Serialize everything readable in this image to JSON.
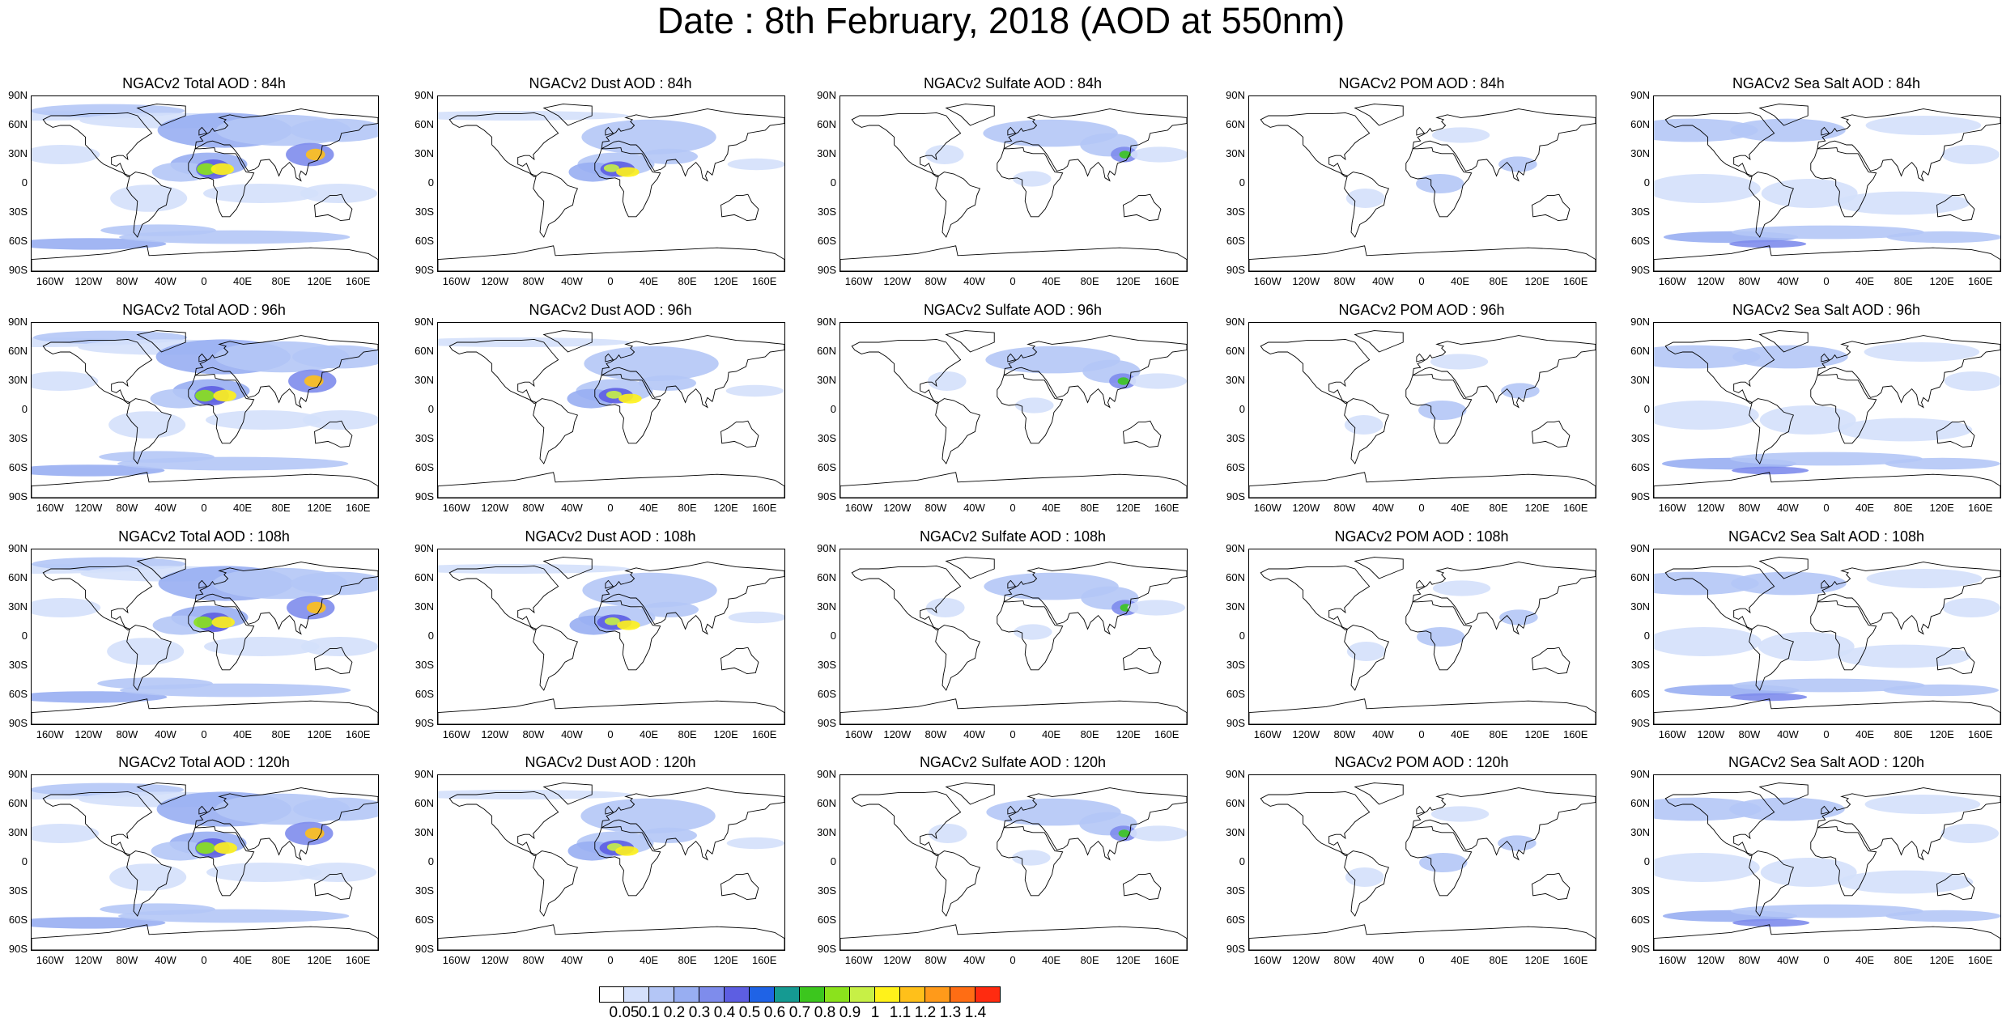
{
  "title": "Date : 8th February, 2018 (AOD at 550nm)",
  "lat_ticks": [
    "90N",
    "60N",
    "30N",
    "0",
    "30S",
    "60S",
    "90S"
  ],
  "lon_ticks": [
    "160W",
    "120W",
    "80W",
    "40W",
    "0",
    "40E",
    "80E",
    "120E",
    "160E"
  ],
  "panels": [
    [
      "NGACv2 Total AOD : 84h",
      "NGACv2 Dust AOD : 84h",
      "NGACv2 Sulfate AOD : 84h",
      "NGACv2 POM AOD : 84h",
      "NGACv2 Sea Salt AOD : 84h"
    ],
    [
      "NGACv2 Total AOD : 96h",
      "NGACv2 Dust AOD : 96h",
      "NGACv2 Sulfate AOD : 96h",
      "NGACv2 POM AOD : 96h",
      "NGACv2 Sea Salt AOD : 96h"
    ],
    [
      "NGACv2 Total AOD : 108h",
      "NGACv2 Dust AOD : 108h",
      "NGACv2 Sulfate AOD : 108h",
      "NGACv2 POM AOD : 108h",
      "NGACv2 Sea Salt AOD : 108h"
    ],
    [
      "NGACv2 Total AOD : 120h",
      "NGACv2 Dust AOD : 120h",
      "NGACv2 Sulfate AOD : 120h",
      "NGACv2 POM AOD : 120h",
      "NGACv2 Sea Salt  AOD : 120h"
    ]
  ],
  "colorbar": {
    "labels": [
      "0.05",
      "0.1",
      "0.2",
      "0.3",
      "0.4",
      "0.5",
      "0.6",
      "0.7",
      "0.8",
      "0.9",
      "1",
      "1.1",
      "1.2",
      "1.3",
      "1.4"
    ],
    "colors": [
      "#ffffff",
      "#d4e0fb",
      "#b4c6f6",
      "#98aef2",
      "#7e8cec",
      "#5d5ee2",
      "#1f63e6",
      "#159a92",
      "#3cc61e",
      "#8be21c",
      "#c7f046",
      "#fff21a",
      "#ffc01a",
      "#ff9a1a",
      "#ff6d14",
      "#ff2b10"
    ]
  },
  "legend_colors": {
    "land_outline": "#000000",
    "ocean_background": "#ffffff"
  }
}
